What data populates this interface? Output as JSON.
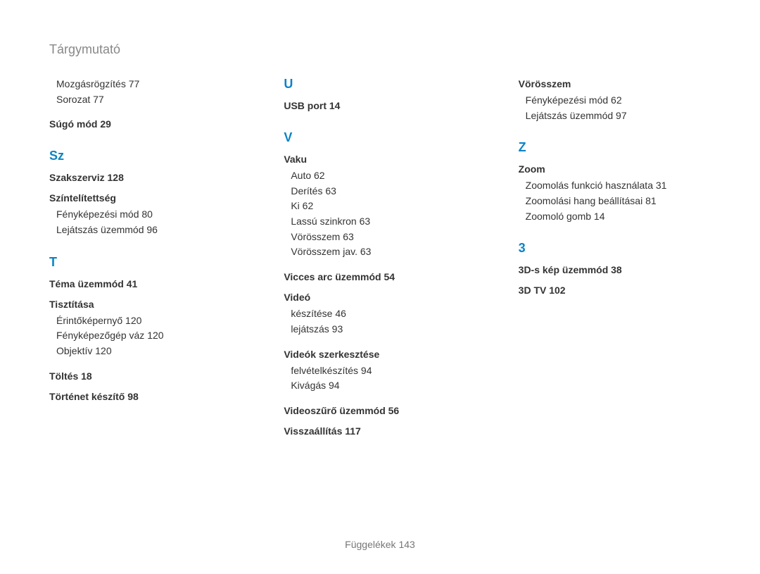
{
  "pageTitle": "Tárgymutató",
  "footer": "Függelékek  143",
  "col1": {
    "pre": [
      "Mozgásrögzítés  77",
      "Sorozat  77"
    ],
    "bold_sugo": "Súgó mód  29",
    "head_sz": "Sz",
    "bold_szaksz": "Szakszerviz  128",
    "bold_szint": "Színtelítettség",
    "szint_sub": [
      "Fényképezési mód  80",
      "Lejátszás üzemmód  96"
    ],
    "head_t": "T",
    "bold_tema": "Téma üzemmód  41",
    "bold_tiszt": "Tisztítása",
    "tiszt_sub": [
      "Érintőképernyő  120",
      "Fényképezőgép váz  120",
      "Objektív  120"
    ],
    "bold_toltes": "Töltés  18",
    "bold_tortenet": "Történet készítő  98"
  },
  "col2": {
    "head_u": "U",
    "bold_usb": "USB port  14",
    "head_v": "V",
    "bold_vaku": "Vaku",
    "vaku_sub": [
      "Auto  62",
      "Derítés  63",
      "Ki  62",
      "Lassú szinkron  63",
      "Vörösszem  63",
      "Vörösszem jav.  63"
    ],
    "bold_vicces": "Vicces arc üzemmód  54",
    "bold_video": "Videó",
    "video_sub": [
      "készítése  46",
      "lejátszás  93"
    ],
    "bold_videok": "Videók szerkesztése",
    "videok_sub": [
      "felvételkészítés  94",
      "Kivágás  94"
    ],
    "bold_videoszuro": "Videoszűrő üzemmód  56",
    "bold_vissza": "Visszaállítás  117"
  },
  "col3": {
    "bold_voros": "Vörösszem",
    "voros_sub": [
      "Fényképezési mód  62",
      "Lejátszás üzemmód  97"
    ],
    "head_z": "Z",
    "bold_zoom": "Zoom",
    "zoom_sub": [
      "Zoomolás funkció használata  31",
      "Zoomolási hang beállításai  81",
      "Zoomoló gomb  14"
    ],
    "head_3": "3",
    "bold_3d": "3D-s kép üzemmód  38",
    "bold_3dtv": "3D TV  102"
  }
}
